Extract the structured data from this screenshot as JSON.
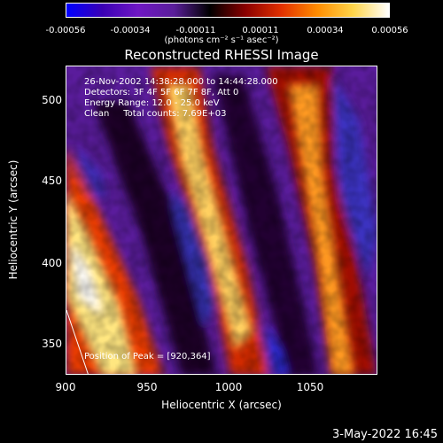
{
  "colorbar": {
    "ticks": [
      "-0.00056",
      "-0.00034",
      "-0.00011",
      "0.00011",
      "0.00034",
      "0.00056"
    ],
    "units": "(photons cm⁻² s⁻¹ asec⁻²)",
    "colors": [
      "#0000ff",
      "#3a00b4",
      "#6f17c4",
      "#5a1e9a",
      "#000000",
      "#8b0000",
      "#e23000",
      "#ff8c00",
      "#ffd54a",
      "#ffffff"
    ]
  },
  "title": "Reconstructed RHESSI Image",
  "info": {
    "time": "26-Nov-2002 14:38:28.000 to 14:44:28.000",
    "detectors": "Detectors: 3F 4F 5F 6F 7F 8F, Att 0",
    "energy": "Energy Range: 12.0 - 25.0 keV",
    "clean": "Clean     Total counts: 7.69E+03"
  },
  "peak_note": "Position of Peak = [920,364]",
  "axes": {
    "x_label": "Heliocentric X (arcsec)",
    "y_label": "Heliocentric Y (arcsec)",
    "x_ticks": [
      "900",
      "950",
      "1000",
      "1050"
    ],
    "y_ticks": [
      "500",
      "450",
      "400",
      "350"
    ],
    "x_range": [
      900,
      1092
    ],
    "y_range": [
      330,
      523
    ]
  },
  "image_bands": [
    {
      "name": "bright-band-left",
      "color_core": "#ffe680",
      "color_edge": "#e83a00"
    },
    {
      "name": "bright-band-middle",
      "color_core": "#ffd060",
      "color_edge": "#d02a00"
    },
    {
      "name": "bright-band-right",
      "color_core": "#ff9a20",
      "color_edge": "#a01000"
    }
  ],
  "timestamp": "3-May-2022 16:45"
}
